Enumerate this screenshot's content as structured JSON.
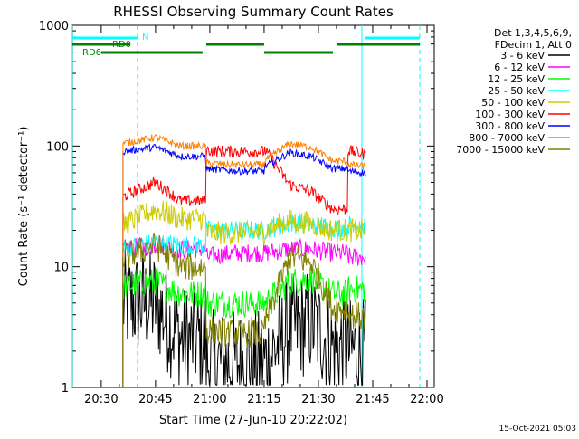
{
  "chart_data": {
    "type": "line",
    "title": "RHESSI Observing Summary Count Rates",
    "xlabel": "Start Time (27-Jun-10 20:22:02)",
    "ylabel": "Count Rate (s⁻¹ detector⁻¹)",
    "y_scale": "log",
    "ylim": [
      1,
      1000
    ],
    "xlim": [
      "20:22:02",
      "22:02:00"
    ],
    "x_tick_labels": [
      "20:30",
      "20:45",
      "21:00",
      "21:15",
      "21:30",
      "21:45",
      "22:00"
    ],
    "y_tick_labels": [
      "1",
      "10",
      "100",
      "1000"
    ],
    "grid": false,
    "legend_placement": "right",
    "legend_header": [
      "Det 1,3,4,5,6,9,",
      "FDecim 1, Att 0"
    ],
    "timestamp": "15-Oct-2021 05:03",
    "data_gaps": [
      [
        "20:22",
        "20:36"
      ],
      [
        "21:43",
        "22:02"
      ]
    ],
    "mode_bars": [
      {
        "label": "N",
        "color": "#00ffff",
        "segments": [
          [
            "20:22",
            "20:40"
          ],
          [
            "21:43",
            "21:58"
          ]
        ]
      },
      {
        "label": "RD0",
        "color": "#008000",
        "segments": [
          [
            "20:22",
            "20:38"
          ],
          [
            "20:59",
            "21:15"
          ],
          [
            "21:35",
            "21:58"
          ]
        ]
      },
      {
        "label": "RD6",
        "color": "#008000",
        "segments": [
          [
            "20:30",
            "20:58"
          ],
          [
            "21:15",
            "21:34"
          ]
        ]
      }
    ],
    "vertical_lines": [
      {
        "time": "20:22",
        "color": "#00ffff",
        "style": "solid"
      },
      {
        "time": "20:40",
        "color": "#00ffff",
        "style": "dashed"
      },
      {
        "time": "21:42",
        "color": "#00ffff",
        "style": "solid"
      },
      {
        "time": "21:58",
        "color": "#00ffff",
        "style": "dashed"
      }
    ],
    "series": [
      {
        "name": "3 - 6 keV",
        "color": "#000000",
        "x": [
          "20:36",
          "20:45",
          "20:52",
          "20:59",
          "21:07",
          "21:15",
          "21:22",
          "21:28",
          "21:34",
          "21:38",
          "21:43"
        ],
        "values": [
          5,
          5,
          2.5,
          1.6,
          1.6,
          1.6,
          3,
          3.5,
          2.2,
          2,
          2
        ]
      },
      {
        "name": "6 - 12 keV",
        "color": "#ff00ff",
        "x": [
          "20:36",
          "20:45",
          "20:52",
          "20:59",
          "21:07",
          "21:15",
          "21:22",
          "21:28",
          "21:34",
          "21:38",
          "21:43"
        ],
        "values": [
          14,
          15,
          14,
          12,
          13,
          13,
          14,
          14,
          13,
          12,
          12
        ]
      },
      {
        "name": "12 - 25 keV",
        "color": "#00ff00",
        "x": [
          "20:36",
          "20:45",
          "20:52",
          "20:59",
          "21:07",
          "21:15",
          "21:22",
          "21:28",
          "21:34",
          "21:38",
          "21:43"
        ],
        "values": [
          7,
          7.5,
          6,
          5,
          5,
          5,
          7.5,
          8,
          6,
          6.5,
          6.5
        ]
      },
      {
        "name": "25 - 50 keV",
        "color": "#00ffff",
        "x": [
          "20:36",
          "20:45",
          "20:52",
          "20:59",
          "21:07",
          "21:15",
          "21:22",
          "21:28",
          "21:34",
          "21:38",
          "21:43"
        ],
        "values": [
          14,
          16,
          15,
          20,
          20,
          20,
          23,
          22,
          21,
          22,
          22
        ]
      },
      {
        "name": "50 - 100 keV",
        "color": "#cccc00",
        "x": [
          "20:36",
          "20:45",
          "20:52",
          "20:59",
          "21:07",
          "21:15",
          "21:22",
          "21:28",
          "21:34",
          "21:38",
          "21:43"
        ],
        "values": [
          22,
          30,
          25,
          19,
          19,
          20,
          24,
          23,
          20,
          20,
          20
        ]
      },
      {
        "name": "100 - 300 keV",
        "color": "#ff0000",
        "x": [
          "20:36",
          "20:45",
          "20:52",
          "20:59",
          "21:07",
          "21:15",
          "21:22",
          "21:28",
          "21:34",
          "21:38",
          "21:43"
        ],
        "values": [
          38,
          50,
          35,
          92,
          90,
          95,
          48,
          42,
          30,
          92,
          85
        ]
      },
      {
        "name": "300 - 800 keV",
        "color": "#0000ff",
        "x": [
          "20:36",
          "20:45",
          "20:52",
          "20:59",
          "21:07",
          "21:15",
          "21:22",
          "21:28",
          "21:34",
          "21:38",
          "21:43"
        ],
        "values": [
          90,
          98,
          82,
          65,
          62,
          67,
          88,
          82,
          65,
          62,
          60
        ]
      },
      {
        "name": "800 - 7000 keV",
        "color": "#ff8000",
        "x": [
          "20:36",
          "20:45",
          "20:52",
          "20:59",
          "21:07",
          "21:15",
          "21:22",
          "21:28",
          "21:34",
          "21:38",
          "21:43"
        ],
        "values": [
          105,
          118,
          100,
          72,
          70,
          75,
          105,
          98,
          75,
          70,
          68
        ]
      },
      {
        "name": "7000 - 15000 keV",
        "color": "#808000",
        "x": [
          "20:36",
          "20:45",
          "20:52",
          "20:59",
          "21:07",
          "21:15",
          "21:22",
          "21:28",
          "21:34",
          "21:38",
          "21:43"
        ],
        "values": [
          12,
          15,
          10,
          3,
          2.8,
          3.2,
          12,
          11,
          4.5,
          4,
          3.8
        ]
      }
    ]
  }
}
